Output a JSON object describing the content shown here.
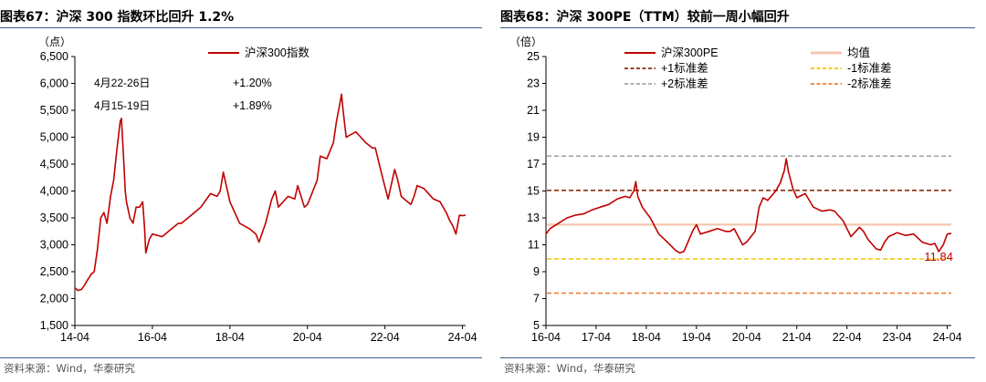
{
  "left": {
    "fig_title": "图表67：沪深 300 指数环比回升 1.2%",
    "source": "资料来源：Wind，华泰研究",
    "chart_data": {
      "type": "line",
      "y_unit": "（点）",
      "ylim": [
        1500,
        6500
      ],
      "y_ticks": [
        "1,500",
        "2,000",
        "2,500",
        "3,000",
        "3,500",
        "4,000",
        "4,500",
        "5,000",
        "5,500",
        "6,000",
        "6,500"
      ],
      "y_tick_values": [
        1500,
        2000,
        2500,
        3000,
        3500,
        4000,
        4500,
        5000,
        5500,
        6000,
        6500
      ],
      "xlim": [
        2014.25,
        2024.33
      ],
      "x_ticks": [
        "14-04",
        "16-04",
        "18-04",
        "20-04",
        "22-04",
        "24-04"
      ],
      "x_tick_values": [
        2014.25,
        2016.25,
        2018.25,
        2020.25,
        2022.25,
        2024.25
      ],
      "grid": false,
      "legend_position": "top-center",
      "annotations": [
        {
          "period": "4月22-26日",
          "change": "+1.20%"
        },
        {
          "period": "4月15-19日",
          "change": "+1.89%"
        }
      ],
      "series": [
        {
          "name": "沪深300指数",
          "color": "#c00000",
          "x": [
            2014.25,
            2014.33,
            2014.42,
            2014.5,
            2014.58,
            2014.67,
            2014.75,
            2014.83,
            2014.92,
            2015.0,
            2015.08,
            2015.17,
            2015.25,
            2015.33,
            2015.42,
            2015.45,
            2015.5,
            2015.55,
            2015.58,
            2015.67,
            2015.75,
            2015.83,
            2015.92,
            2016.0,
            2016.05,
            2016.08,
            2016.17,
            2016.25,
            2016.5,
            2016.75,
            2016.92,
            2017.0,
            2017.25,
            2017.5,
            2017.75,
            2017.92,
            2018.0,
            2018.08,
            2018.25,
            2018.5,
            2018.75,
            2018.92,
            2019.0,
            2019.17,
            2019.33,
            2019.42,
            2019.5,
            2019.75,
            2019.92,
            2020.0,
            2020.17,
            2020.25,
            2020.5,
            2020.58,
            2020.75,
            2020.92,
            2021.0,
            2021.08,
            2021.13,
            2021.17,
            2021.25,
            2021.5,
            2021.75,
            2021.92,
            2022.0,
            2022.17,
            2022.33,
            2022.5,
            2022.58,
            2022.67,
            2022.83,
            2022.92,
            2023.0,
            2023.08,
            2023.25,
            2023.5,
            2023.67,
            2023.83,
            2023.92,
            2024.0,
            2024.08,
            2024.17,
            2024.25,
            2024.33
          ],
          "y": [
            2200,
            2150,
            2170,
            2250,
            2350,
            2450,
            2500,
            2900,
            3500,
            3600,
            3400,
            3900,
            4200,
            4750,
            5300,
            5350,
            4700,
            4000,
            3800,
            3500,
            3400,
            3700,
            3700,
            3800,
            3300,
            2850,
            3100,
            3200,
            3150,
            3300,
            3400,
            3400,
            3550,
            3700,
            3950,
            3900,
            4000,
            4350,
            3800,
            3400,
            3300,
            3200,
            3050,
            3400,
            3850,
            4000,
            3700,
            3900,
            3850,
            4100,
            3700,
            3750,
            4200,
            4650,
            4600,
            4900,
            5300,
            5600,
            5800,
            5500,
            5000,
            5100,
            4900,
            4800,
            4800,
            4300,
            3850,
            4400,
            4200,
            3900,
            3800,
            3750,
            3900,
            4100,
            4050,
            3850,
            3800,
            3600,
            3450,
            3350,
            3200,
            3550,
            3540,
            3550
          ]
        }
      ]
    }
  },
  "right": {
    "fig_title": "图表68：沪深 300PE（TTM）较前一周小幅回升",
    "source": "资料来源：Wind，华泰研究",
    "chart_data": {
      "type": "line",
      "y_unit": "（倍）",
      "ylim": [
        5,
        25
      ],
      "y_ticks": [
        "5",
        "7",
        "9",
        "11",
        "13",
        "15",
        "17",
        "19",
        "21",
        "23",
        "25"
      ],
      "y_tick_values": [
        5,
        7,
        9,
        11,
        13,
        15,
        17,
        19,
        21,
        23,
        25
      ],
      "xlim": [
        2016.25,
        2024.33
      ],
      "x_ticks": [
        "16-04",
        "17-04",
        "18-04",
        "19-04",
        "20-04",
        "21-04",
        "22-04",
        "23-04",
        "24-04"
      ],
      "x_tick_values": [
        2016.25,
        2017.25,
        2018.25,
        2019.25,
        2020.25,
        2021.25,
        2022.25,
        2023.25,
        2024.25
      ],
      "grid": false,
      "legend_position": "top",
      "last_value_label": "11.84",
      "reference_lines": [
        {
          "name": "均值",
          "value": 12.5,
          "color": "#f4c7b0",
          "style": "solid"
        },
        {
          "name": "+1标准差",
          "value": 15.05,
          "color": "#8b2c12",
          "style": "dashed"
        },
        {
          "name": "-1标准差",
          "value": 9.95,
          "color": "#f5c400",
          "style": "dashed"
        },
        {
          "name": "+2标准差",
          "value": 17.6,
          "color": "#a6a6a6",
          "style": "dashed"
        },
        {
          "name": "-2标准差",
          "value": 7.4,
          "color": "#ee7d31",
          "style": "dashed"
        }
      ],
      "series": [
        {
          "name": "沪深300PE",
          "color": "#c00000",
          "x": [
            2016.25,
            2016.33,
            2016.5,
            2016.67,
            2016.83,
            2017.0,
            2017.17,
            2017.33,
            2017.5,
            2017.67,
            2017.83,
            2017.92,
            2018.0,
            2018.04,
            2018.08,
            2018.17,
            2018.33,
            2018.5,
            2018.67,
            2018.83,
            2018.92,
            2019.0,
            2019.17,
            2019.25,
            2019.33,
            2019.5,
            2019.67,
            2019.83,
            2019.92,
            2020.0,
            2020.17,
            2020.25,
            2020.42,
            2020.5,
            2020.58,
            2020.67,
            2020.83,
            2020.92,
            2021.0,
            2021.04,
            2021.08,
            2021.17,
            2021.25,
            2021.42,
            2021.58,
            2021.75,
            2021.92,
            2022.0,
            2022.17,
            2022.33,
            2022.5,
            2022.58,
            2022.67,
            2022.83,
            2022.92,
            2023.0,
            2023.08,
            2023.25,
            2023.42,
            2023.58,
            2023.75,
            2023.92,
            2024.0,
            2024.08,
            2024.17,
            2024.25,
            2024.33
          ],
          "y": [
            11.8,
            12.2,
            12.6,
            13.0,
            13.2,
            13.3,
            13.6,
            13.8,
            14.0,
            14.4,
            14.6,
            14.5,
            15.0,
            15.7,
            14.6,
            13.8,
            13.0,
            11.8,
            11.2,
            10.6,
            10.4,
            10.5,
            12.0,
            12.5,
            11.8,
            12.0,
            12.2,
            12.0,
            12.0,
            12.2,
            11.0,
            11.2,
            12.0,
            13.8,
            14.5,
            14.3,
            15.0,
            15.6,
            16.5,
            17.4,
            16.5,
            15.2,
            14.5,
            14.8,
            13.8,
            13.5,
            13.6,
            13.5,
            12.8,
            11.6,
            12.3,
            12.0,
            11.4,
            10.7,
            10.6,
            11.2,
            11.6,
            11.9,
            11.7,
            11.8,
            11.2,
            11.0,
            11.1,
            10.5,
            11.0,
            11.8,
            11.84
          ]
        }
      ]
    }
  }
}
